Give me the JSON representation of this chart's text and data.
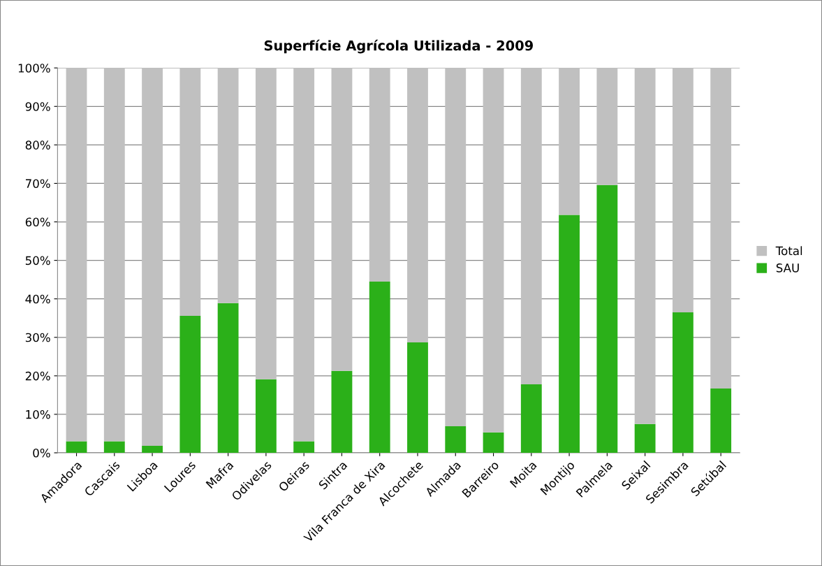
{
  "chart_data": {
    "type": "bar",
    "stacked": true,
    "title": "Superfície Agrícola Utilizada - 2009",
    "categories": [
      "Amadora",
      "Cascais",
      "Lisboa",
      "Loures",
      "Mafra",
      "Odivelas",
      "Oeiras",
      "Sintra",
      "Vila Franca de Xira",
      "Alcochete",
      "Almada",
      "Barreiro",
      "Moita",
      "Montijo",
      "Palmela",
      "Seixal",
      "Sesimbra",
      "Setúbal"
    ],
    "series": [
      {
        "name": "SAU",
        "color": "#2bb019",
        "values": [
          3,
          3,
          1.8,
          35.6,
          38.9,
          19.1,
          3,
          21.3,
          44.5,
          28.7,
          6.9,
          5.3,
          17.8,
          61.8,
          69.6,
          7.5,
          36.5,
          16.7
        ]
      },
      {
        "name": "Total",
        "color": "#c0c0c0",
        "values": [
          97,
          97,
          98.2,
          64.4,
          61.1,
          80.9,
          97,
          78.7,
          55.5,
          71.3,
          93.1,
          94.7,
          82.2,
          38.2,
          30.4,
          92.5,
          63.5,
          83.3
        ]
      }
    ],
    "ylim": [
      0,
      100
    ],
    "yticks": [
      {
        "value": 0,
        "label": "0%"
      },
      {
        "value": 10,
        "label": "10%"
      },
      {
        "value": 20,
        "label": "20%"
      },
      {
        "value": 30,
        "label": "30%"
      },
      {
        "value": 40,
        "label": "40%"
      },
      {
        "value": 50,
        "label": "50%"
      },
      {
        "value": 60,
        "label": "60%"
      },
      {
        "value": 70,
        "label": "70%"
      },
      {
        "value": 80,
        "label": "80%"
      },
      {
        "value": 90,
        "label": "90%"
      },
      {
        "value": 100,
        "label": "100%"
      }
    ],
    "grid": "y",
    "legend": "right"
  }
}
